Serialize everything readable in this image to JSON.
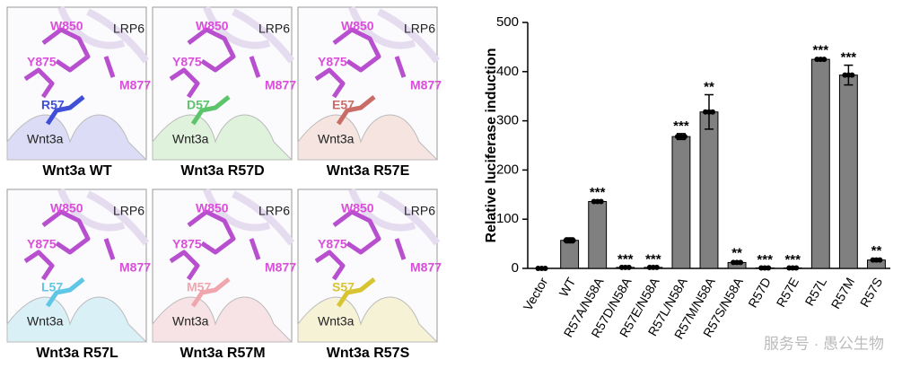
{
  "panels": [
    {
      "title": "Wnt3a WT",
      "labels": [
        "W850",
        "LRP6",
        "Y875",
        "M877",
        "R57",
        "Wnt3a"
      ],
      "residue_color": "#3f4fd6",
      "tint": "#dcdcf7"
    },
    {
      "title": "Wnt3a R57D",
      "labels": [
        "W850",
        "LRP6",
        "Y875",
        "M877",
        "D57",
        "Wnt3a"
      ],
      "residue_color": "#5cc46a",
      "tint": "#dff2dc"
    },
    {
      "title": "Wnt3a R57E",
      "labels": [
        "W850",
        "LRP6",
        "Y875",
        "M877",
        "E57",
        "Wnt3a"
      ],
      "residue_color": "#c96c66",
      "tint": "#f5e4e0"
    },
    {
      "title": "Wnt3a R57L",
      "labels": [
        "W850",
        "LRP6",
        "Y875",
        "M877",
        "L57",
        "Wnt3a"
      ],
      "residue_color": "#5fc6e6",
      "tint": "#d9f1f6"
    },
    {
      "title": "Wnt3a R57M",
      "labels": [
        "W850",
        "LRP6",
        "Y875",
        "M877",
        "M57",
        "Wnt3a"
      ],
      "residue_color": "#f0a6ad",
      "tint": "#f7e3e6"
    },
    {
      "title": "Wnt3a R57S",
      "labels": [
        "W850",
        "LRP6",
        "Y875",
        "M877",
        "S57",
        "Wnt3a"
      ],
      "residue_color": "#d8c431",
      "tint": "#f6f2d6"
    }
  ],
  "watermark": "服务号 · 愚公生物",
  "chart_data": {
    "type": "bar",
    "ylabel": "Relative luciferase induction",
    "categories": [
      "Vector",
      "WT",
      "R57A/N58A",
      "R57D/N58A",
      "R57E/N58A",
      "R57L/N58A",
      "R57M/N58A",
      "R57S/N58A",
      "R57D",
      "R57E",
      "R57L",
      "R57M",
      "R57S"
    ],
    "values": [
      0,
      57,
      136,
      2,
      2,
      268,
      318,
      12,
      1,
      1,
      425,
      393,
      17
    ],
    "errors": [
      0,
      5,
      3,
      1,
      1,
      6,
      35,
      3,
      1,
      1,
      3,
      20,
      3
    ],
    "annotations": [
      null,
      null,
      "***",
      "***",
      "***",
      "***",
      "**",
      "**",
      "***",
      "***",
      "***",
      "***",
      "**"
    ],
    "color": "#808080",
    "ylim": [
      0,
      500
    ],
    "yticks": [
      0,
      100,
      200,
      300,
      400,
      500
    ]
  }
}
